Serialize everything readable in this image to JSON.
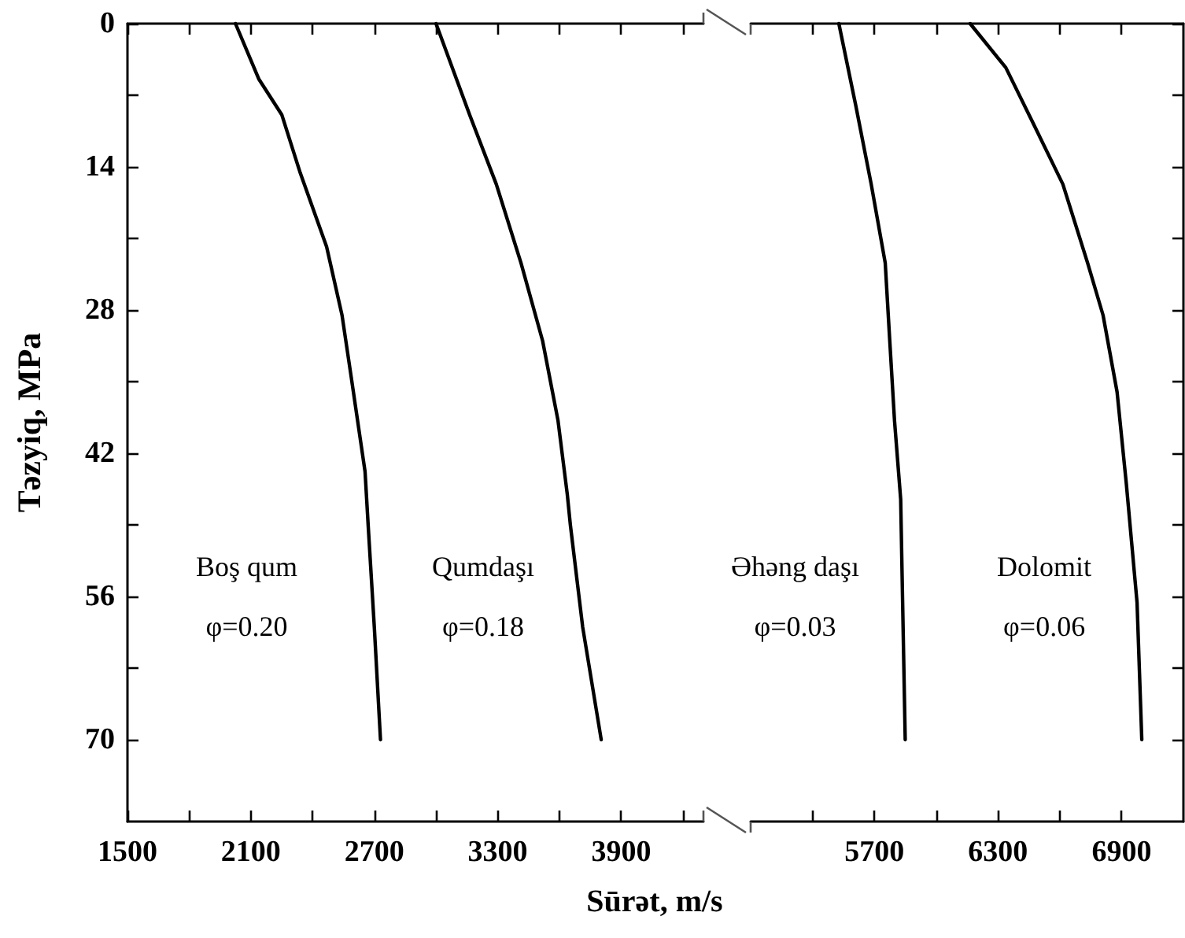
{
  "chart_data": [
    {
      "type": "line",
      "xlabel": "Sūrət, m/s",
      "ylabel": "Təzyiq, MPa",
      "xlim": [
        1500,
        4300
      ],
      "ylim": [
        78,
        0
      ],
      "xticks": [
        1500,
        {
          "value": 1800,
          "label": null
        },
        2100,
        {
          "value": 2400,
          "label": null
        },
        2700,
        {
          "value": 3000,
          "label": null
        },
        3300,
        {
          "value": 3600,
          "label": null
        },
        3900,
        {
          "value": 4200,
          "label": null
        }
      ],
      "yticks": [
        0,
        {
          "value": 7,
          "label": null
        },
        14,
        {
          "value": 21,
          "label": null
        },
        28,
        {
          "value": 35,
          "label": null
        },
        42,
        {
          "value": 49,
          "label": null
        },
        56,
        {
          "value": 63,
          "label": null
        },
        70
      ],
      "grid": false,
      "legend": false,
      "marker": "none",
      "line_style": "solid",
      "series": [
        {
          "name": "Boş qum",
          "color": "#000000",
          "x": [
            2025,
            2138,
            2250,
            2340,
            2468,
            2543,
            2588,
            2655,
            2670,
            2700,
            2730
          ],
          "values": [
            0,
            5.4,
            8.9,
            14.6,
            21.8,
            28.5,
            34.6,
            43.8,
            49,
            59,
            70
          ]
        },
        {
          "name": "Qumdaşı",
          "color": "#000000",
          "x": [
            3000,
            3165,
            3293,
            3413,
            3518,
            3593,
            3638,
            3653,
            3713,
            3803
          ],
          "values": [
            0,
            9,
            15.7,
            23.4,
            31,
            38.8,
            46,
            49,
            59,
            70
          ]
        }
      ],
      "annotations": [
        "φ=0.20",
        "φ=0.18"
      ]
    },
    {
      "type": "line",
      "xlim": [
        5100,
        7200
      ],
      "ylim": [
        78,
        0
      ],
      "xticks": [
        {
          "value": 5400,
          "label": null
        },
        5700,
        {
          "value": 6000,
          "label": null
        },
        6300,
        {
          "value": 6600,
          "label": null
        },
        6900
      ],
      "yticks": [
        0,
        {
          "value": 7,
          "label": null
        },
        14,
        {
          "value": 21,
          "label": null
        },
        28,
        {
          "value": 35,
          "label": null
        },
        42,
        {
          "value": 49,
          "label": null
        },
        56,
        {
          "value": 63,
          "label": null
        },
        70
      ],
      "tick_labels": "x",
      "grid": false,
      "legend": false,
      "marker": "none",
      "line_style": "solid",
      "series": [
        {
          "name": "Əhəng daşı",
          "color": "#000000",
          "x": [
            5528,
            5610,
            5685,
            5753,
            5775,
            5798,
            5828,
            5835,
            5850
          ],
          "values": [
            0,
            8,
            15.7,
            23.4,
            31,
            38.8,
            46.5,
            54,
            70
          ]
        },
        {
          "name": "Dolomit",
          "color": "#000000",
          "x": [
            6165,
            6338,
            6465,
            6615,
            6735,
            6810,
            6878,
            6923,
            6975,
            6998
          ],
          "values": [
            0,
            4.3,
            9.5,
            15.7,
            23.4,
            28.5,
            36,
            45,
            56.6,
            70
          ]
        }
      ],
      "annotations": [
        "φ=0.03",
        "φ=0.06"
      ]
    }
  ]
}
